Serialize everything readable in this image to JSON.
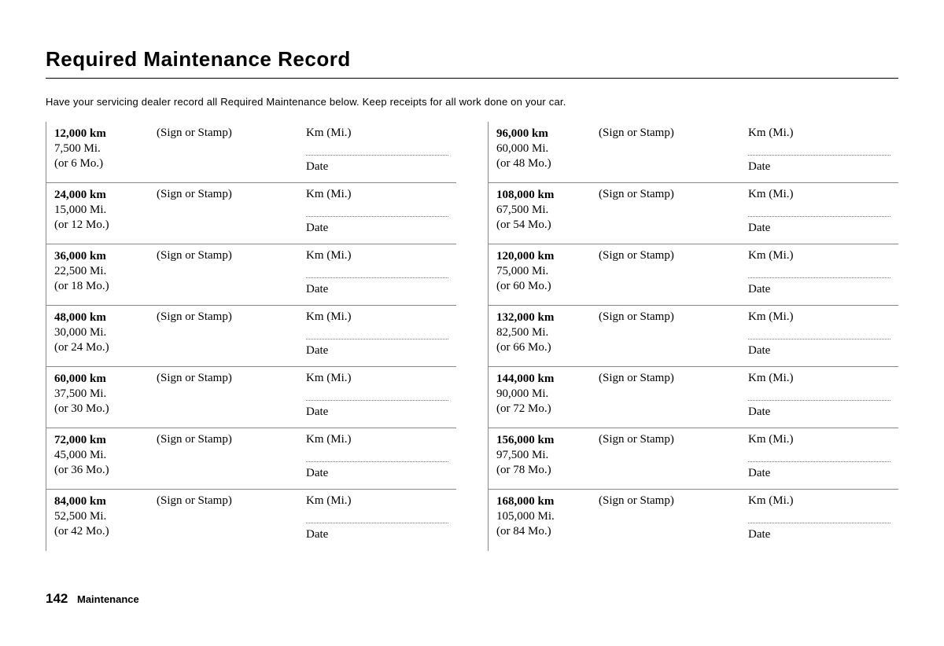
{
  "title": "Required Maintenance Record",
  "instructions": "Have your servicing dealer record all Required Maintenance below. Keep receipts for all work done on your car.",
  "labels": {
    "sign": "(Sign or Stamp)",
    "km_mi": "Km (Mi.)",
    "date": "Date"
  },
  "left": [
    {
      "km": "12,000 km",
      "mi": "7,500 Mi.",
      "mo": "(or 6 Mo.)"
    },
    {
      "km": "24,000 km",
      "mi": "15,000 Mi.",
      "mo": "(or 12 Mo.)"
    },
    {
      "km": "36,000 km",
      "mi": "22,500 Mi.",
      "mo": "(or 18 Mo.)"
    },
    {
      "km": "48,000 km",
      "mi": "30,000 Mi.",
      "mo": "(or 24 Mo.)"
    },
    {
      "km": "60,000 km",
      "mi": "37,500 Mi.",
      "mo": "(or 30 Mo.)"
    },
    {
      "km": "72,000 km",
      "mi": "45,000 Mi.",
      "mo": "(or 36 Mo.)"
    },
    {
      "km": "84,000 km",
      "mi": "52,500 Mi.",
      "mo": "(or 42 Mo.)"
    }
  ],
  "right": [
    {
      "km": "96,000 km",
      "mi": "60,000 Mi.",
      "mo": "(or 48 Mo.)"
    },
    {
      "km": "108,000 km",
      "mi": "67,500 Mi.",
      "mo": "(or 54 Mo.)"
    },
    {
      "km": "120,000 km",
      "mi": "75,000 Mi.",
      "mo": "(or 60 Mo.)"
    },
    {
      "km": "132,000 km",
      "mi": "82,500 Mi.",
      "mo": "(or 66 Mo.)"
    },
    {
      "km": "144,000 km",
      "mi": "90,000 Mi.",
      "mo": "(or 72 Mo.)"
    },
    {
      "km": "156,000 km",
      "mi": "97,500 Mi.",
      "mo": "(or 78 Mo.)"
    },
    {
      "km": "168,000 km",
      "mi": "105,000 Mi.",
      "mo": "(or 84 Mo.)"
    }
  ],
  "footer": {
    "page": "142",
    "section": "Maintenance"
  }
}
